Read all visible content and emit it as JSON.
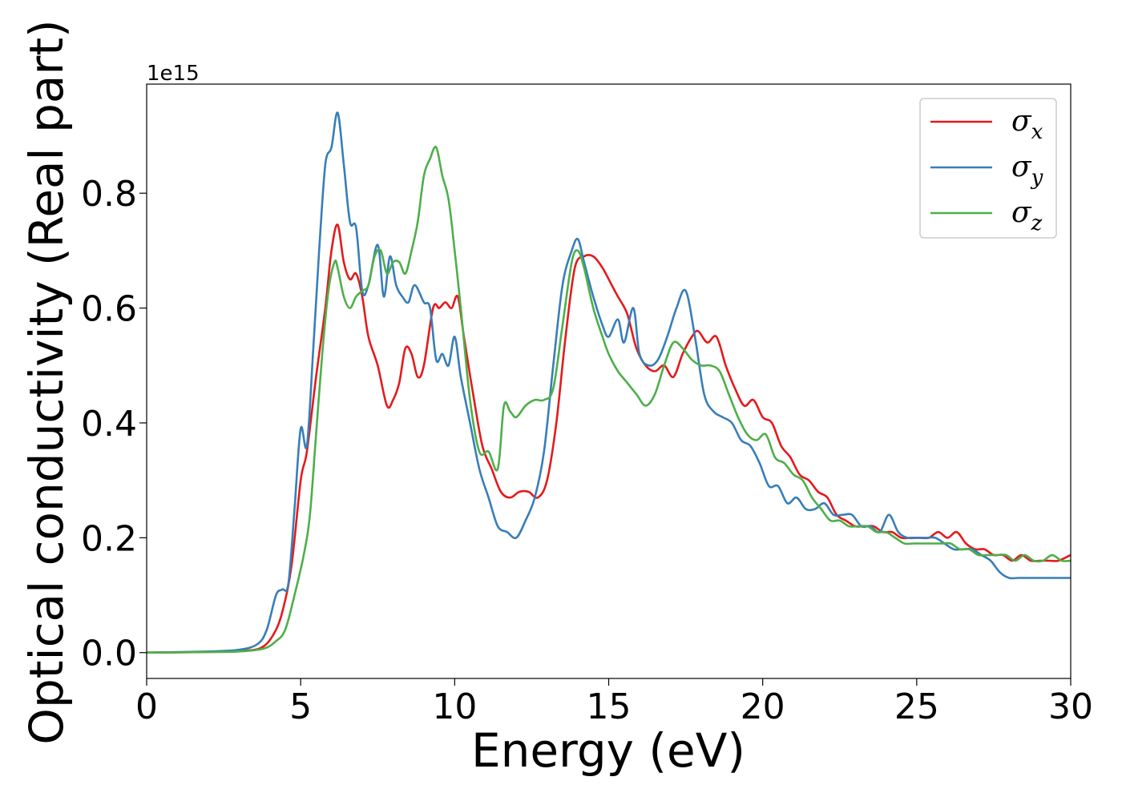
{
  "chart_data": {
    "type": "line",
    "xlabel": "Energy (eV)",
    "ylabel": "Optical conductivity (Real part)",
    "y_offset_label": "1e15",
    "xlim": [
      0,
      30
    ],
    "ylim": [
      -0.045,
      0.99
    ],
    "xticks": [
      0,
      5,
      10,
      15,
      20,
      25,
      30
    ],
    "xtick_labels": [
      "0",
      "5",
      "10",
      "15",
      "20",
      "25",
      "30"
    ],
    "yticks": [
      0.0,
      0.2,
      0.4,
      0.6,
      0.8
    ],
    "ytick_labels": [
      "0.0",
      "0.2",
      "0.4",
      "0.6",
      "0.8"
    ],
    "grid": false,
    "legend_position": "top-right",
    "series": [
      {
        "name": "σx",
        "symbol": "σ",
        "sub": "x",
        "color": "#e41a1c",
        "x": [
          0,
          2,
          3,
          3.7,
          4.1,
          4.4,
          4.7,
          5.0,
          5.2,
          5.5,
          5.8,
          6.0,
          6.2,
          6.4,
          6.6,
          6.8,
          7.0,
          7.2,
          7.5,
          7.8,
          8.0,
          8.2,
          8.4,
          8.6,
          8.8,
          9.0,
          9.3,
          9.5,
          9.7,
          9.9,
          10.1,
          10.3,
          10.6,
          10.9,
          11.2,
          11.5,
          11.8,
          12.1,
          12.4,
          12.7,
          13.0,
          13.3,
          13.6,
          13.9,
          14.2,
          14.5,
          14.8,
          15.1,
          15.3,
          15.6,
          15.9,
          16.2,
          16.5,
          16.8,
          17.1,
          17.4,
          17.7,
          17.9,
          18.2,
          18.5,
          18.8,
          19.1,
          19.4,
          19.7,
          20.0,
          20.3,
          20.6,
          20.9,
          21.2,
          21.5,
          21.8,
          22.1,
          22.4,
          22.7,
          23.0,
          23.3,
          23.6,
          23.9,
          24.2,
          24.5,
          24.8,
          25.1,
          25.4,
          25.7,
          26.0,
          26.3,
          26.6,
          26.9,
          27.2,
          27.5,
          27.8,
          28.1,
          28.4,
          28.7,
          29.0,
          29.3,
          29.6,
          30.0
        ],
        "y": [
          0,
          0.001,
          0.003,
          0.008,
          0.03,
          0.07,
          0.15,
          0.3,
          0.35,
          0.48,
          0.6,
          0.7,
          0.745,
          0.68,
          0.65,
          0.66,
          0.62,
          0.55,
          0.5,
          0.43,
          0.44,
          0.47,
          0.53,
          0.52,
          0.48,
          0.5,
          0.6,
          0.6,
          0.61,
          0.6,
          0.62,
          0.55,
          0.45,
          0.36,
          0.32,
          0.28,
          0.27,
          0.28,
          0.28,
          0.27,
          0.3,
          0.4,
          0.55,
          0.67,
          0.69,
          0.69,
          0.67,
          0.64,
          0.62,
          0.59,
          0.53,
          0.5,
          0.49,
          0.5,
          0.48,
          0.52,
          0.55,
          0.56,
          0.54,
          0.55,
          0.5,
          0.46,
          0.43,
          0.44,
          0.41,
          0.4,
          0.36,
          0.34,
          0.31,
          0.3,
          0.28,
          0.27,
          0.24,
          0.23,
          0.22,
          0.22,
          0.22,
          0.21,
          0.21,
          0.2,
          0.2,
          0.2,
          0.2,
          0.21,
          0.2,
          0.21,
          0.19,
          0.18,
          0.18,
          0.17,
          0.17,
          0.16,
          0.17,
          0.16,
          0.16,
          0.16,
          0.16,
          0.17
        ]
      },
      {
        "name": "σy",
        "symbol": "σ",
        "sub": "y",
        "color": "#377eb8",
        "x": [
          0,
          2,
          3,
          3.6,
          3.9,
          4.2,
          4.4,
          4.6,
          4.8,
          5.0,
          5.2,
          5.4,
          5.6,
          5.8,
          6.0,
          6.2,
          6.4,
          6.6,
          6.8,
          7.0,
          7.2,
          7.5,
          7.7,
          7.9,
          8.1,
          8.3,
          8.5,
          8.7,
          9.0,
          9.2,
          9.4,
          9.6,
          9.8,
          10.0,
          10.2,
          10.5,
          10.8,
          11.1,
          11.4,
          11.7,
          12.0,
          12.3,
          12.6,
          12.9,
          13.2,
          13.5,
          13.8,
          14.0,
          14.2,
          14.5,
          14.8,
          15.0,
          15.3,
          15.5,
          15.8,
          16.0,
          16.3,
          16.6,
          16.9,
          17.2,
          17.5,
          17.8,
          18.1,
          18.4,
          18.7,
          19.0,
          19.3,
          19.6,
          19.9,
          20.2,
          20.5,
          20.8,
          21.1,
          21.4,
          21.7,
          22.0,
          22.3,
          22.6,
          22.9,
          23.2,
          23.5,
          23.8,
          24.1,
          24.4,
          24.7,
          25.0,
          25.3,
          25.6,
          25.9,
          26.2,
          26.5,
          26.8,
          27.1,
          27.4,
          27.7,
          28.0,
          28.3,
          28.6,
          28.9,
          29.2,
          29.5,
          30.0
        ],
        "y": [
          0,
          0.002,
          0.005,
          0.015,
          0.04,
          0.1,
          0.11,
          0.12,
          0.25,
          0.39,
          0.36,
          0.52,
          0.7,
          0.85,
          0.88,
          0.94,
          0.85,
          0.75,
          0.74,
          0.63,
          0.64,
          0.71,
          0.62,
          0.69,
          0.64,
          0.62,
          0.61,
          0.64,
          0.61,
          0.6,
          0.51,
          0.52,
          0.5,
          0.55,
          0.48,
          0.4,
          0.32,
          0.27,
          0.22,
          0.21,
          0.2,
          0.23,
          0.27,
          0.35,
          0.5,
          0.64,
          0.7,
          0.72,
          0.68,
          0.62,
          0.57,
          0.55,
          0.58,
          0.54,
          0.6,
          0.52,
          0.5,
          0.51,
          0.55,
          0.6,
          0.63,
          0.55,
          0.45,
          0.42,
          0.41,
          0.4,
          0.37,
          0.36,
          0.33,
          0.29,
          0.29,
          0.26,
          0.27,
          0.25,
          0.25,
          0.26,
          0.24,
          0.24,
          0.24,
          0.22,
          0.22,
          0.21,
          0.24,
          0.21,
          0.2,
          0.2,
          0.2,
          0.2,
          0.19,
          0.18,
          0.18,
          0.18,
          0.17,
          0.16,
          0.14,
          0.13,
          0.13,
          0.13,
          0.13,
          0.13,
          0.13,
          0.13
        ]
      },
      {
        "name": "σz",
        "symbol": "σ",
        "sub": "z",
        "color": "#4daf4a",
        "x": [
          0,
          2,
          3,
          3.8,
          4.2,
          4.5,
          4.8,
          5.1,
          5.3,
          5.5,
          5.7,
          5.9,
          6.1,
          6.2,
          6.4,
          6.6,
          6.8,
          7.0,
          7.2,
          7.4,
          7.6,
          7.8,
          8.0,
          8.2,
          8.4,
          8.6,
          8.8,
          9.0,
          9.2,
          9.4,
          9.6,
          9.8,
          10.0,
          10.2,
          10.5,
          10.8,
          11.1,
          11.4,
          11.6,
          11.8,
          12.0,
          12.3,
          12.6,
          12.9,
          13.2,
          13.5,
          13.8,
          14.0,
          14.2,
          14.5,
          14.8,
          15.0,
          15.3,
          15.6,
          15.9,
          16.2,
          16.5,
          16.8,
          17.1,
          17.4,
          17.7,
          18.0,
          18.3,
          18.6,
          18.9,
          19.2,
          19.5,
          19.8,
          20.1,
          20.4,
          20.7,
          21.0,
          21.3,
          21.6,
          21.9,
          22.2,
          22.5,
          22.8,
          23.1,
          23.4,
          23.7,
          24.0,
          24.3,
          24.6,
          24.9,
          25.2,
          25.5,
          25.8,
          26.1,
          26.4,
          26.7,
          27.0,
          27.3,
          27.6,
          27.9,
          28.2,
          28.5,
          28.8,
          29.1,
          29.4,
          29.7,
          30.0
        ],
        "y": [
          0,
          0.001,
          0.002,
          0.007,
          0.02,
          0.04,
          0.1,
          0.17,
          0.24,
          0.38,
          0.52,
          0.63,
          0.68,
          0.67,
          0.62,
          0.6,
          0.62,
          0.63,
          0.64,
          0.69,
          0.7,
          0.66,
          0.68,
          0.68,
          0.66,
          0.7,
          0.75,
          0.83,
          0.86,
          0.88,
          0.83,
          0.79,
          0.7,
          0.6,
          0.44,
          0.35,
          0.35,
          0.32,
          0.43,
          0.42,
          0.41,
          0.43,
          0.44,
          0.44,
          0.46,
          0.57,
          0.68,
          0.7,
          0.67,
          0.6,
          0.55,
          0.52,
          0.49,
          0.47,
          0.45,
          0.43,
          0.45,
          0.5,
          0.54,
          0.53,
          0.51,
          0.5,
          0.5,
          0.49,
          0.45,
          0.41,
          0.38,
          0.37,
          0.38,
          0.34,
          0.33,
          0.31,
          0.3,
          0.27,
          0.25,
          0.23,
          0.23,
          0.22,
          0.22,
          0.22,
          0.21,
          0.21,
          0.2,
          0.19,
          0.19,
          0.19,
          0.19,
          0.19,
          0.19,
          0.18,
          0.18,
          0.17,
          0.17,
          0.17,
          0.17,
          0.16,
          0.17,
          0.16,
          0.16,
          0.17,
          0.16,
          0.16
        ]
      }
    ]
  }
}
